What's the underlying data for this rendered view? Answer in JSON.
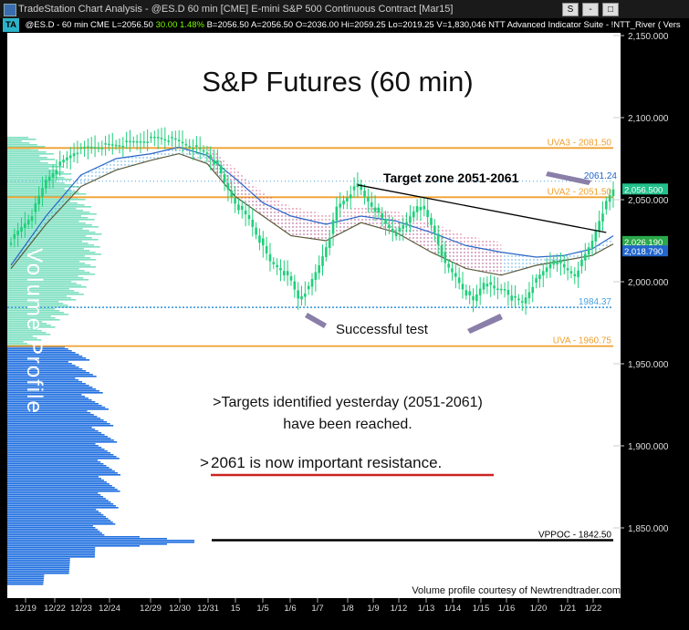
{
  "window": {
    "title": "TradeStation Chart Analysis - @ES.D 60 min [CME] E-mini S&P 500 Continuous Contract [Mar15]",
    "buttons": [
      "S",
      "-",
      "□"
    ]
  },
  "infobar": {
    "badge": "TA",
    "symbol": "@ES.D - 60 min CME",
    "last": "L=2056.50",
    "change": "30.00",
    "pct": "1.48%",
    "bid": "B=2056.50",
    "ask": "A=2056.50",
    "open": "O=2036.00",
    "high": "Hi=2059.25",
    "low": "Lo=2019.25",
    "volume": "V=1,830,046",
    "indicator": "NTT Advanced Indicator Suite - !NTT_River ( Vers"
  },
  "chart_data": {
    "type": "candlestick",
    "title": "S&P Futures (60 min)",
    "y_axis": {
      "min": 1805,
      "max": 2155,
      "ticks": [
        2150,
        2100,
        2050,
        2000,
        1950,
        1900,
        1850
      ]
    },
    "x_labels": [
      "12/19",
      "12/22",
      "12/23",
      "12/24",
      "12/29",
      "12/30",
      "12/31",
      "15",
      "1/5",
      "1/6",
      "1/7",
      "1/8",
      "1/9",
      "1/12",
      "1/13",
      "1/14",
      "1/15",
      "1/16",
      "1/20",
      "1/21",
      "1/22"
    ],
    "price_path": [
      [
        0,
        2025
      ],
      [
        6,
        2041
      ],
      [
        10,
        2062
      ],
      [
        14,
        2072
      ],
      [
        18,
        2079
      ],
      [
        22,
        2082
      ],
      [
        26,
        2083
      ],
      [
        32,
        2084
      ],
      [
        37,
        2086
      ],
      [
        42,
        2088
      ],
      [
        47,
        2086
      ],
      [
        52,
        2082
      ],
      [
        56,
        2078
      ],
      [
        59,
        2070
      ],
      [
        61,
        2060
      ],
      [
        63,
        2052
      ],
      [
        65,
        2045
      ],
      [
        68,
        2038
      ],
      [
        71,
        2025
      ],
      [
        74,
        2012
      ],
      [
        77,
        2008
      ],
      [
        80,
        2000
      ],
      [
        82,
        1990
      ],
      [
        85,
        1996
      ],
      [
        88,
        2010
      ],
      [
        91,
        2028
      ],
      [
        93,
        2045
      ],
      [
        96,
        2052
      ],
      [
        99,
        2059
      ],
      [
        101,
        2052
      ],
      [
        104,
        2044
      ],
      [
        107,
        2035
      ],
      [
        110,
        2029
      ],
      [
        113,
        2036
      ],
      [
        116,
        2047
      ],
      [
        118,
        2043
      ],
      [
        121,
        2030
      ],
      [
        124,
        2010
      ],
      [
        127,
        2003
      ],
      [
        130,
        1993
      ],
      [
        132,
        1988
      ],
      [
        135,
        2000
      ],
      [
        138,
        1995
      ],
      [
        141,
        1996
      ],
      [
        143,
        1990
      ],
      [
        146,
        1987
      ],
      [
        149,
        1998
      ],
      [
        152,
        2006
      ],
      [
        155,
        2014
      ],
      [
        158,
        2008
      ],
      [
        161,
        2004
      ],
      [
        164,
        2016
      ],
      [
        166,
        2025
      ],
      [
        168,
        2038
      ],
      [
        170,
        2048
      ],
      [
        172,
        2056
      ]
    ],
    "river_upper": [
      [
        0,
        2010
      ],
      [
        10,
        2040
      ],
      [
        20,
        2065
      ],
      [
        30,
        2075
      ],
      [
        40,
        2078
      ],
      [
        48,
        2082
      ],
      [
        56,
        2077
      ],
      [
        64,
        2063
      ],
      [
        72,
        2048
      ],
      [
        80,
        2040
      ],
      [
        90,
        2035
      ],
      [
        100,
        2040
      ],
      [
        110,
        2037
      ],
      [
        120,
        2030
      ],
      [
        130,
        2022
      ],
      [
        140,
        2018
      ],
      [
        150,
        2015
      ],
      [
        158,
        2016
      ],
      [
        166,
        2020
      ],
      [
        172,
        2028
      ]
    ],
    "river_lower": [
      [
        0,
        2008
      ],
      [
        10,
        2035
      ],
      [
        20,
        2058
      ],
      [
        30,
        2068
      ],
      [
        40,
        2074
      ],
      [
        48,
        2078
      ],
      [
        56,
        2072
      ],
      [
        64,
        2052
      ],
      [
        72,
        2040
      ],
      [
        80,
        2028
      ],
      [
        90,
        2025
      ],
      [
        100,
        2036
      ],
      [
        110,
        2030
      ],
      [
        120,
        2018
      ],
      [
        130,
        2008
      ],
      [
        140,
        2004
      ],
      [
        150,
        2010
      ],
      [
        158,
        2013
      ],
      [
        166,
        2016
      ],
      [
        172,
        2023
      ]
    ],
    "horizontal_levels": [
      {
        "label": "UVA3 - 2081.50",
        "value": 2081.5,
        "color": "#f0a030"
      },
      {
        "label": "UVA2 - 2051.50",
        "value": 2051.5,
        "color": "#f0a030"
      },
      {
        "label": "1984.37",
        "value": 1984.37,
        "color": "#4aa3df"
      },
      {
        "label": "UVA - 1960.75",
        "value": 1960.75,
        "color": "#f0a030"
      },
      {
        "label": "VPPOC - 1842.50",
        "value": 1842.5,
        "color": "#000000"
      }
    ],
    "dotted_level": {
      "value": 2061.24,
      "label": "2061.24"
    },
    "price_tags": [
      {
        "value": 2056.5,
        "label": "2,056.500",
        "bg": "#22c08a"
      },
      {
        "value": 2026.19,
        "label": "2,026.190",
        "bg": "#2aa84a"
      },
      {
        "value": 2018.79,
        "label": "2,018.790",
        "bg": "#2266cc"
      }
    ],
    "trendline": {
      "from": [
        99,
        2059
      ],
      "to": [
        170,
        2030
      ]
    }
  },
  "annotations": {
    "target_zone": "Target zone 2051-2061",
    "successful_test": "Successful test",
    "volume_profile_label": "Volume Profile",
    "note1_line1": ">Targets identified yesterday (2051-2061)",
    "note1_line2": "have been reached.",
    "note2_prefix": ">",
    "note2_text": "2061 is now important resistance.",
    "credit": "Volume profile courtesy of Newtrendtrader.com"
  },
  "colors": {
    "candle": "#1fcf7a",
    "volume_upper": "#7fe0c0",
    "volume_lower": "#1f6fe0",
    "river_fill_up": "#4aa3df",
    "river_fill_down": "#d05080",
    "underline": "#cc2222"
  }
}
